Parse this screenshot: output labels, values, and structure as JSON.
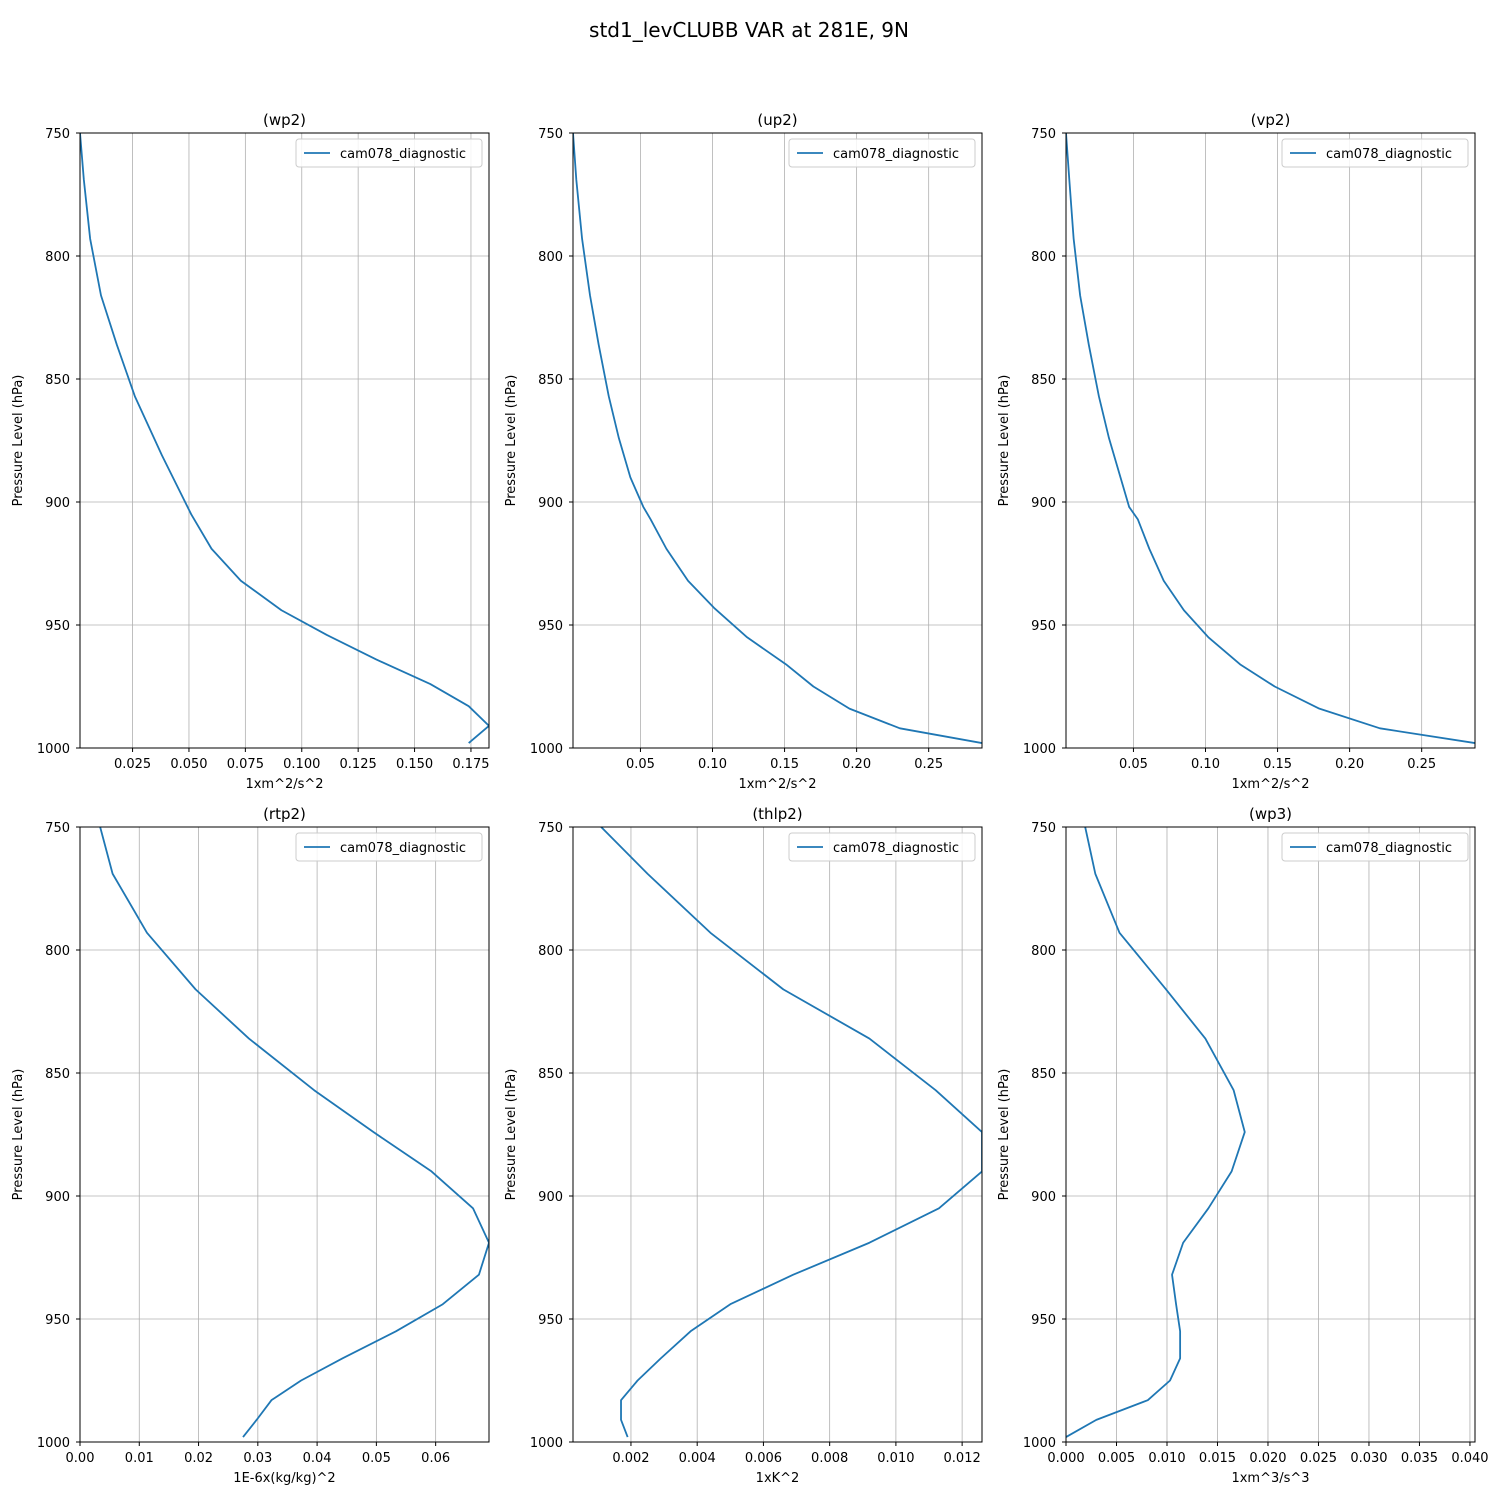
{
  "figure": {
    "suptitle": "std1_levCLUBB VAR at 281E, 9N",
    "colors": {
      "line": "#1f77b4",
      "grid": "#b0b0b0",
      "axis": "#000000"
    }
  },
  "chart_data": [
    {
      "type": "line",
      "title": "(wp2)",
      "xlabel": "1xm^2/s^2",
      "ylabel": "Pressure Level (hPa)",
      "xlim": [
        0.0017,
        0.183
      ],
      "ylim": [
        1000,
        750
      ],
      "xticks": [
        0.025,
        0.05,
        0.075,
        0.1,
        0.125,
        0.15,
        0.175
      ],
      "xtick_labels": [
        "0.025",
        "0.050",
        "0.075",
        "0.100",
        "0.125",
        "0.150",
        "0.175"
      ],
      "yticks": [
        750,
        800,
        850,
        900,
        950,
        1000
      ],
      "ytick_labels": [
        "750",
        "800",
        "850",
        "900",
        "950",
        "1000"
      ],
      "grid": true,
      "legend": "top-right",
      "series": [
        {
          "name": "cam078_diagnostic",
          "x": [
            0.0017,
            0.0034,
            0.0062,
            0.011,
            0.018,
            0.026,
            0.038,
            0.051,
            0.06,
            0.073,
            0.091,
            0.111,
            0.133,
            0.157,
            0.174,
            0.183,
            0.174
          ],
          "y": [
            750,
            769,
            793,
            816,
            836,
            857,
            881,
            905,
            919,
            932,
            944,
            954,
            964,
            974,
            983,
            991,
            998
          ]
        }
      ]
    },
    {
      "type": "line",
      "title": "(up2)",
      "xlabel": "1xm^2/s^2",
      "ylabel": "Pressure Level (hPa)",
      "xlim": [
        0.0032,
        0.287
      ],
      "ylim": [
        1000,
        750
      ],
      "xticks": [
        0.05,
        0.1,
        0.15,
        0.2,
        0.25
      ],
      "xtick_labels": [
        "0.05",
        "0.10",
        "0.15",
        "0.20",
        "0.25"
      ],
      "yticks": [
        750,
        800,
        850,
        900,
        950,
        1000
      ],
      "ytick_labels": [
        "750",
        "800",
        "850",
        "900",
        "950",
        "1000"
      ],
      "grid": true,
      "legend": "top-right",
      "series": [
        {
          "name": "cam078_diagnostic",
          "x": [
            0.0032,
            0.0055,
            0.0095,
            0.015,
            0.021,
            0.028,
            0.035,
            0.043,
            0.052,
            0.057,
            0.068,
            0.083,
            0.101,
            0.124,
            0.151,
            0.17,
            0.195,
            0.23,
            0.287
          ],
          "y": [
            750,
            769,
            793,
            816,
            836,
            857,
            874,
            890,
            902,
            907,
            919,
            932,
            943,
            955,
            966,
            975,
            984,
            992,
            998
          ]
        }
      ]
    },
    {
      "type": "line",
      "title": "(vp2)",
      "xlabel": "1xm^2/s^2",
      "ylabel": "Pressure Level (hPa)",
      "xlim": [
        0.0032,
        0.287
      ],
      "ylim": [
        1000,
        750
      ],
      "xticks": [
        0.05,
        0.1,
        0.15,
        0.2,
        0.25
      ],
      "xtick_labels": [
        "0.05",
        "0.10",
        "0.15",
        "0.20",
        "0.25"
      ],
      "yticks": [
        750,
        800,
        850,
        900,
        950,
        1000
      ],
      "ytick_labels": [
        "750",
        "800",
        "850",
        "900",
        "950",
        "1000"
      ],
      "grid": true,
      "legend": "top-right",
      "series": [
        {
          "name": "cam078_diagnostic",
          "x": [
            0.0032,
            0.0055,
            0.0085,
            0.013,
            0.019,
            0.026,
            0.033,
            0.041,
            0.047,
            0.053,
            0.061,
            0.071,
            0.085,
            0.102,
            0.124,
            0.148,
            0.179,
            0.221,
            0.287
          ],
          "y": [
            750,
            769,
            793,
            816,
            836,
            857,
            874,
            890,
            902,
            907,
            919,
            932,
            944,
            955,
            966,
            975,
            984,
            992,
            998
          ]
        }
      ]
    },
    {
      "type": "line",
      "title": "(rtp2)",
      "xlabel": "1E-6x(kg/kg)^2",
      "ylabel": "Pressure Level (hPa)",
      "xlim": [
        0.0,
        0.069
      ],
      "ylim": [
        1000,
        750
      ],
      "xticks": [
        0.0,
        0.01,
        0.02,
        0.03,
        0.04,
        0.05,
        0.06
      ],
      "xtick_labels": [
        "0.00",
        "0.01",
        "0.02",
        "0.03",
        "0.04",
        "0.05",
        "0.06"
      ],
      "yticks": [
        750,
        800,
        850,
        900,
        950,
        1000
      ],
      "ytick_labels": [
        "750",
        "800",
        "850",
        "900",
        "950",
        "1000"
      ],
      "grid": true,
      "legend": "top-right",
      "series": [
        {
          "name": "cam078_diagnostic",
          "x": [
            0.0034,
            0.0055,
            0.0113,
            0.0195,
            0.0285,
            0.0395,
            0.0495,
            0.0593,
            0.0663,
            0.069,
            0.0673,
            0.0612,
            0.0533,
            0.0443,
            0.0373,
            0.0323,
            0.0298,
            0.0275
          ],
          "y": [
            750,
            769,
            793,
            816,
            836,
            857,
            874,
            890,
            905,
            919,
            932,
            944,
            955,
            966,
            975,
            983,
            991,
            998
          ]
        }
      ]
    },
    {
      "type": "line",
      "title": "(thlp2)",
      "xlabel": "1xK^2",
      "ylabel": "Pressure Level (hPa)",
      "xlim": [
        0.00025,
        0.0126
      ],
      "ylim": [
        1000,
        750
      ],
      "xticks": [
        0.002,
        0.004,
        0.006,
        0.008,
        0.01,
        0.012
      ],
      "xtick_labels": [
        "0.002",
        "0.004",
        "0.006",
        "0.008",
        "0.010",
        "0.012"
      ],
      "yticks": [
        750,
        800,
        850,
        900,
        950,
        1000
      ],
      "ytick_labels": [
        "750",
        "800",
        "850",
        "900",
        "950",
        "1000"
      ],
      "grid": true,
      "legend": "top-right",
      "series": [
        {
          "name": "cam078_diagnostic",
          "x": [
            0.0011,
            0.0025,
            0.0044,
            0.0066,
            0.0092,
            0.0112,
            0.0126,
            0.0126,
            0.0113,
            0.0092,
            0.0069,
            0.005,
            0.0038,
            0.0029,
            0.0022,
            0.0017,
            0.0017,
            0.0019
          ],
          "y": [
            750,
            769,
            793,
            816,
            836,
            857,
            874,
            890,
            905,
            919,
            932,
            944,
            955,
            966,
            975,
            983,
            991,
            998
          ]
        }
      ]
    },
    {
      "type": "line",
      "title": "(wp3)",
      "xlabel": "1xm^3/s^3",
      "ylabel": "Pressure Level (hPa)",
      "xlim": [
        0.0,
        0.0405
      ],
      "ylim": [
        1000,
        750
      ],
      "xticks": [
        0.0,
        0.005,
        0.01,
        0.015,
        0.02,
        0.025,
        0.03,
        0.035,
        0.04
      ],
      "xtick_labels": [
        "0.000",
        "0.005",
        "0.010",
        "0.015",
        "0.020",
        "0.025",
        "0.030",
        "0.035",
        "0.040"
      ],
      "yticks": [
        750,
        800,
        850,
        900,
        950,
        1000
      ],
      "ytick_labels": [
        "750",
        "800",
        "850",
        "900",
        "950",
        "1000"
      ],
      "grid": true,
      "legend": "top-right",
      "series": [
        {
          "name": "cam078_diagnostic",
          "x": [
            0.0019,
            0.0029,
            0.0053,
            0.0099,
            0.0138,
            0.0166,
            0.0177,
            0.0164,
            0.0141,
            0.0116,
            0.0105,
            0.0109,
            0.0113,
            0.0113,
            0.0103,
            0.0081,
            0.003,
            0.0
          ],
          "y": [
            750,
            769,
            793,
            816,
            836,
            857,
            874,
            890,
            905,
            919,
            932,
            944,
            955,
            966,
            975,
            983,
            991,
            998
          ]
        }
      ]
    }
  ]
}
